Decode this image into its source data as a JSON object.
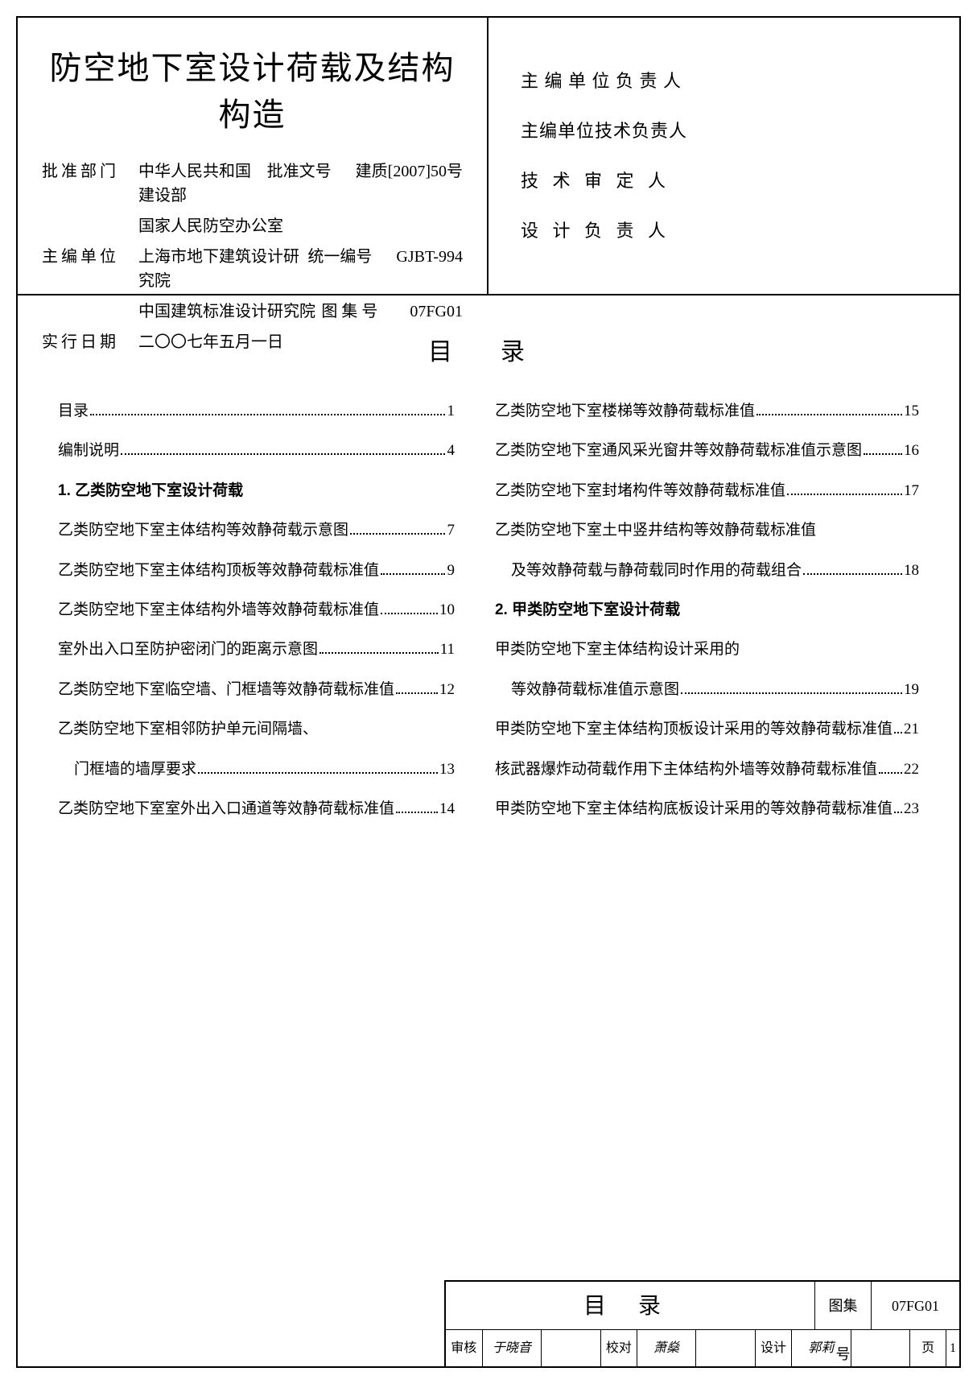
{
  "header": {
    "title": "防空地下室设计荷载及结构构造",
    "approve_dept_label": "批准部门",
    "approve_dept_val1": "中华人民共和国建设部",
    "approve_dept_val2": "国家人民防空办公室",
    "approve_no_label": "批准文号",
    "approve_no_val": "建质[2007]50号",
    "editor_label": "主编单位",
    "editor_val1": "上海市地下建筑设计研究院",
    "editor_val2": "中国建筑标准设计研究院",
    "unify_no_label": "统一编号",
    "unify_no_val": "GJBT-994",
    "exec_date_label": "实行日期",
    "exec_date_val": "二〇〇七年五月一日",
    "atlas_no_label": "图 集 号",
    "atlas_no_val": "07FG01"
  },
  "signatures": {
    "s1_label": "主 编 单 位 负 责 人",
    "s2_label": "主编单位技术负责人",
    "s3_label": "技  术  审  定  人",
    "s4_label": "设  计  负  责  人"
  },
  "toc": {
    "title": "目录",
    "left": [
      {
        "text": "目录",
        "page": "1",
        "head": false
      },
      {
        "text": "编制说明",
        "page": "4",
        "head": false
      },
      {
        "text": "1. 乙类防空地下室设计荷载",
        "page": "",
        "head": true
      },
      {
        "text": "乙类防空地下室主体结构等效静荷载示意图",
        "page": "7",
        "head": false
      },
      {
        "text": "乙类防空地下室主体结构顶板等效静荷载标准值",
        "page": "9",
        "head": false
      },
      {
        "text": "乙类防空地下室主体结构外墙等效静荷载标准值",
        "page": "10",
        "head": false
      },
      {
        "text": "室外出入口至防护密闭门的距离示意图",
        "page": "11",
        "head": false
      },
      {
        "text": "乙类防空地下室临空墙、门框墙等效静荷载标准值",
        "page": "12",
        "head": false
      },
      {
        "text": "乙类防空地下室相邻防护单元间隔墙、",
        "page": "",
        "head": false,
        "nodots": true
      },
      {
        "text": "门框墙的墙厚要求",
        "page": "13",
        "head": false,
        "indent": true
      },
      {
        "text": "乙类防空地下室室外出入口通道等效静荷载标准值",
        "page": "14",
        "head": false
      }
    ],
    "right": [
      {
        "text": "乙类防空地下室楼梯等效静荷载标准值",
        "page": "15",
        "head": false
      },
      {
        "text": "乙类防空地下室通风采光窗井等效静荷载标准值示意图",
        "page": "16",
        "head": false
      },
      {
        "text": "乙类防空地下室封堵构件等效静荷载标准值",
        "page": "17",
        "head": false
      },
      {
        "text": "乙类防空地下室土中竖井结构等效静荷载标准值",
        "page": "",
        "head": false,
        "nodots": true
      },
      {
        "text": "及等效静荷载与静荷载同时作用的荷载组合",
        "page": "18",
        "head": false,
        "indent": true
      },
      {
        "text": "2. 甲类防空地下室设计荷载",
        "page": "",
        "head": true
      },
      {
        "text": "甲类防空地下室主体结构设计采用的",
        "page": "",
        "head": false,
        "nodots": true
      },
      {
        "text": "等效静荷载标准值示意图",
        "page": "19",
        "head": false,
        "indent": true
      },
      {
        "text": "甲类防空地下室主体结构顶板设计采用的等效静荷载标准值",
        "page": "21",
        "head": false
      },
      {
        "text": "核武器爆炸动荷载作用下主体结构外墙等效静荷载标准值",
        "page": "22",
        "head": false
      },
      {
        "text": "甲类防空地下室主体结构底板设计采用的等效静荷载标准值",
        "page": "23",
        "head": false
      }
    ]
  },
  "footer": {
    "title": "目录",
    "atlas_label": "图集号",
    "atlas_val": "07FG01",
    "row": {
      "k1": "审核",
      "v1": "于晓音",
      "k2": "校对",
      "v2": "萧燊",
      "k3": "设计",
      "v3": "郭莉",
      "plabel": "页",
      "pval": "1"
    }
  }
}
